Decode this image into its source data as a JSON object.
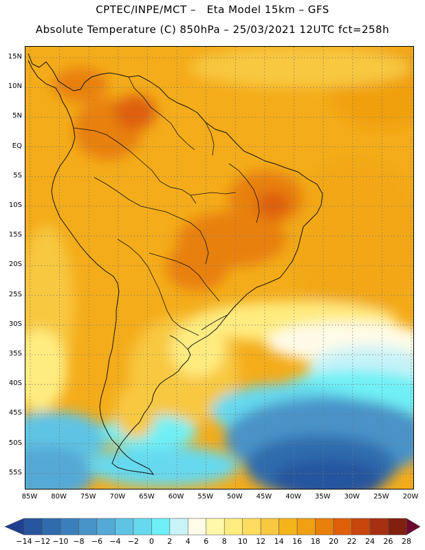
{
  "header": {
    "line1": "CPTEC/INPE/MCT –   Eta Model 15km – GFS",
    "line2": "Absolute Temperature (C) 850hPa – 25/03/2021 12UTC fct=258h"
  },
  "map": {
    "lat_labels": [
      "15N",
      "10N",
      "5N",
      "EQ",
      "5S",
      "10S",
      "15S",
      "20S",
      "25S",
      "30S",
      "35S",
      "40S",
      "45S",
      "50S",
      "55S"
    ],
    "lon_labels": [
      "85W",
      "80W",
      "75W",
      "70W",
      "65W",
      "60W",
      "55W",
      "50W",
      "45W",
      "40W",
      "35W",
      "30W",
      "25W",
      "20W"
    ],
    "lat_range": [
      -58,
      17
    ],
    "lon_range": [
      -86,
      -20
    ]
  },
  "legend": {
    "labels": [
      "-14",
      "-12",
      "-10",
      "-8",
      "-6",
      "-4",
      "-2",
      "0",
      "2",
      "4",
      "6",
      "8",
      "10",
      "12",
      "14",
      "16",
      "18",
      "20",
      "22",
      "24",
      "26",
      "28"
    ],
    "colors": [
      "#1f3f8f",
      "#27559f",
      "#2e6cad",
      "#3a7fbb",
      "#4893c8",
      "#55a9d6",
      "#5fc4e4",
      "#66d9ee",
      "#6ff0f6",
      "#c8f3f8",
      "#fffbe8",
      "#fff8a8",
      "#ffec80",
      "#fddc60",
      "#f8c840",
      "#f5b41a",
      "#f0a010",
      "#e8800a",
      "#de5f08",
      "#c8460c",
      "#a83010",
      "#822010",
      "#6a0830"
    ]
  },
  "chart_data": {
    "type": "heatmap",
    "title": "Absolute Temperature (C) 850hPa – 25/03/2021 12UTC fct=258h",
    "colorbar_ticks": [
      -14,
      -12,
      -10,
      -8,
      -6,
      -4,
      -2,
      0,
      2,
      4,
      6,
      8,
      10,
      12,
      14,
      16,
      18,
      20,
      22,
      24,
      26,
      28
    ],
    "lat_range": [
      -58,
      17
    ],
    "lon_range": [
      -86,
      -20
    ]
  }
}
